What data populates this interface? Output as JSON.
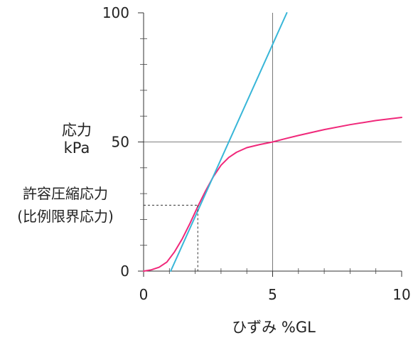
{
  "chart_data": {
    "type": "line",
    "title": "",
    "ylabel_lines": [
      "応力",
      "kPa"
    ],
    "xlabel": "ひずみ  %GL",
    "annotation_lines": [
      "許容圧縮応力",
      "(比例限界応力)"
    ],
    "xlim": [
      0,
      10
    ],
    "ylim": [
      0,
      100
    ],
    "x_ticks": [
      0,
      5,
      10
    ],
    "y_ticks": [
      0,
      50,
      100
    ],
    "grid": {
      "x": [
        5
      ],
      "y": [
        50
      ]
    },
    "series": [
      {
        "color": "#f0287a",
        "x": [
          0,
          0.3,
          0.6,
          0.9,
          1.2,
          1.5,
          1.8,
          2.1,
          2.4,
          2.7,
          3.0,
          3.3,
          3.6,
          4.0,
          4.5,
          5.0,
          5.5,
          6.0,
          7.0,
          8.0,
          9.0,
          10.0
        ],
        "y": [
          0,
          0.5,
          1.5,
          3.5,
          7.5,
          12.5,
          18.5,
          25.0,
          31.0,
          36.5,
          41.0,
          44.0,
          46.0,
          47.8,
          49.0,
          50.0,
          51.3,
          52.5,
          54.8,
          56.7,
          58.3,
          59.5
        ]
      },
      {
        "color": "#38b6d8",
        "x": [
          1.05,
          5.55
        ],
        "y": [
          0,
          100
        ]
      }
    ],
    "proportional_limit": {
      "x": 2.1,
      "y": 25.5
    }
  }
}
